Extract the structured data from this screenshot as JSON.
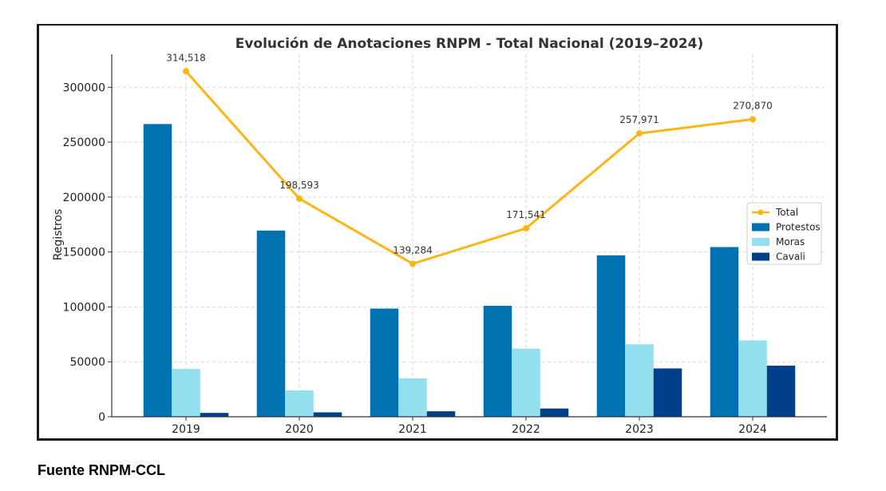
{
  "chart_data": {
    "type": "bar",
    "title": "Evolución de Anotaciones RNPM - Total Nacional (2019–2024)",
    "xlabel": "",
    "ylabel": "Registros",
    "ylim": [
      0,
      330000
    ],
    "yticks": [
      "0",
      "50000",
      "100000",
      "150000",
      "200000",
      "250000",
      "300000"
    ],
    "ytick_values": [
      0,
      50000,
      100000,
      150000,
      200000,
      250000,
      300000
    ],
    "categories": [
      "2019",
      "2020",
      "2021",
      "2022",
      "2023",
      "2024"
    ],
    "series": [
      {
        "name": "Protestos",
        "type": "bar",
        "color": "#0072b2",
        "values": [
          266500,
          169500,
          98500,
          101000,
          147000,
          154500
        ]
      },
      {
        "name": "Moras",
        "type": "bar",
        "color": "#93dff0",
        "values": [
          43500,
          24000,
          35000,
          62000,
          66000,
          69500
        ]
      },
      {
        "name": "Cavali",
        "type": "bar",
        "color": "#003f8a",
        "values": [
          3500,
          4000,
          5000,
          7500,
          44000,
          46500
        ]
      },
      {
        "name": "Total",
        "type": "line",
        "color": "#fbb514",
        "values": [
          314518,
          198593,
          139284,
          171541,
          257971,
          270870
        ],
        "labels": [
          "314,518",
          "198,593",
          "139,284",
          "171,541",
          "257,971",
          "270,870"
        ]
      }
    ],
    "legend_order": [
      "Total",
      "Protestos",
      "Moras",
      "Cavali"
    ],
    "legend_position": "center-right",
    "grid": true
  },
  "footer": {
    "source": "Fuente RNPM-CCL"
  }
}
